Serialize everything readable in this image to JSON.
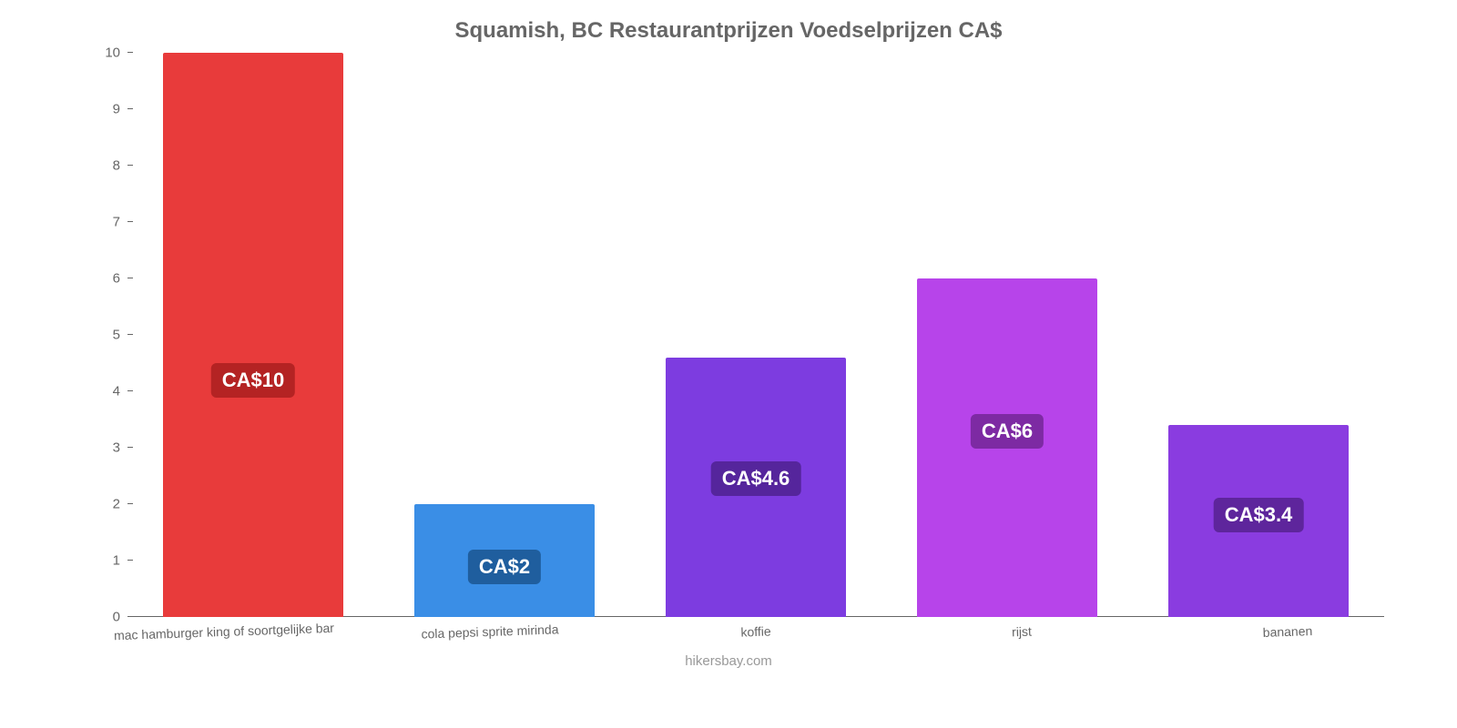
{
  "chart": {
    "type": "bar",
    "title": "Squamish, BC Restaurantprijzen Voedselprijzen CA$",
    "title_fontsize": 24,
    "title_color": "#666666",
    "background_color": "#ffffff",
    "attribution": "hikersbay.com",
    "attribution_color": "#999999",
    "attribution_fontsize": 15,
    "ylim": [
      0,
      10
    ],
    "ytick_step": 1,
    "yticks": [
      0,
      1,
      2,
      3,
      4,
      5,
      6,
      7,
      8,
      9,
      10
    ],
    "ytick_fontsize": 15,
    "ytick_color": "#666666",
    "axis_line_color": "#666666",
    "bar_width_pct": 72,
    "xlabel_fontsize": 14,
    "xlabel_color": "#666666",
    "xlabel_rotate_deg": -2,
    "value_label_fontsize": 22,
    "value_label_text_color": "#ffffff",
    "value_label_radius": 6,
    "categories": [
      "mac hamburger king of soortgelijke bar",
      "cola pepsi sprite mirinda",
      "koffie",
      "rijst",
      "bananen"
    ],
    "values": [
      10,
      2,
      4.6,
      6,
      3.4
    ],
    "value_labels": [
      "CA$10",
      "CA$2",
      "CA$4.6",
      "CA$6",
      "CA$3.4"
    ],
    "bar_colors": [
      "#e83b3b",
      "#3a8ee6",
      "#7d3ce0",
      "#b744ea",
      "#8a3ce0"
    ],
    "value_label_bg_colors": [
      "#b42323",
      "#1f5e9e",
      "#55259c",
      "#7d2aa3",
      "#5e259c"
    ],
    "value_label_positions_pct": [
      55,
      40,
      40,
      40,
      38
    ]
  }
}
